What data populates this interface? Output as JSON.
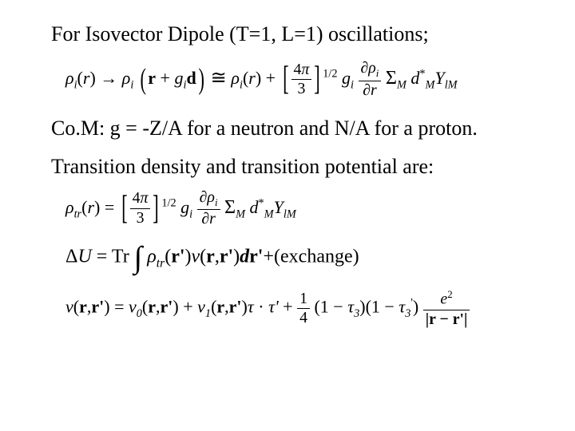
{
  "text": {
    "line1": "For Isovector Dipole (T=1, L=1) oscillations;",
    "line2": "Co.M:  g = -Z/A for a neutron and N/A for a proton.",
    "line3": "Transition density and transition potential are:"
  },
  "eq1": {
    "rho_i": "ρ",
    "r": "r",
    "arrow": "→",
    "g_i": "g",
    "d_bold": "d",
    "cong": "≅",
    "four_pi": "4π",
    "three": "3",
    "half": "1/2",
    "partial": "∂",
    "partial_rho": "∂ρ",
    "partial_r": "∂r",
    "Sigma": "Σ",
    "M": "M",
    "d_star": "d",
    "star": "*",
    "Y": "Y",
    "lM": "lM"
  },
  "eq2": {
    "rho_tr": "ρ",
    "tr": "tr",
    "r": "r",
    "four_pi": "4π",
    "three": "3",
    "half": "1/2",
    "g_i": "g",
    "i": "i",
    "partial_rho": "∂ρ",
    "partial_r": "∂r",
    "Sigma": "Σ",
    "M": "M",
    "d": "d",
    "star": "*",
    "Y": "Y",
    "lM": "lM"
  },
  "eq3": {
    "DeltaU": "ΔU",
    "eq": "=",
    "Tr": "Tr",
    "int": "∫",
    "rho_tr": "ρ",
    "tr": "tr",
    "r_prime": "r'",
    "v": "v",
    "r": "r",
    "d": "d",
    "plus_exchange": "+(exchange)"
  },
  "eq4": {
    "v": "v",
    "r": "r",
    "r_prime": "r'",
    "v0": "v",
    "zero": "0",
    "plus": "+",
    "v1": "v",
    "one": "1",
    "tau": "τ",
    "dot": "·",
    "tau_prime": "τ'",
    "one_over_four": "1",
    "four": "4",
    "lpar": "(",
    "rpar": ")",
    "minus": "−",
    "tau3": "τ",
    "three": "3",
    "tau3_prime": "τ",
    "prime": "'",
    "e2": "e",
    "two": "2",
    "bar": "|",
    "r_minus_rp": "r − r'"
  },
  "style": {
    "background_color": "#ffffff",
    "text_color": "#000000",
    "font_family": "Times New Roman",
    "title_fontsize": 26,
    "equation_fontsize": 22
  }
}
